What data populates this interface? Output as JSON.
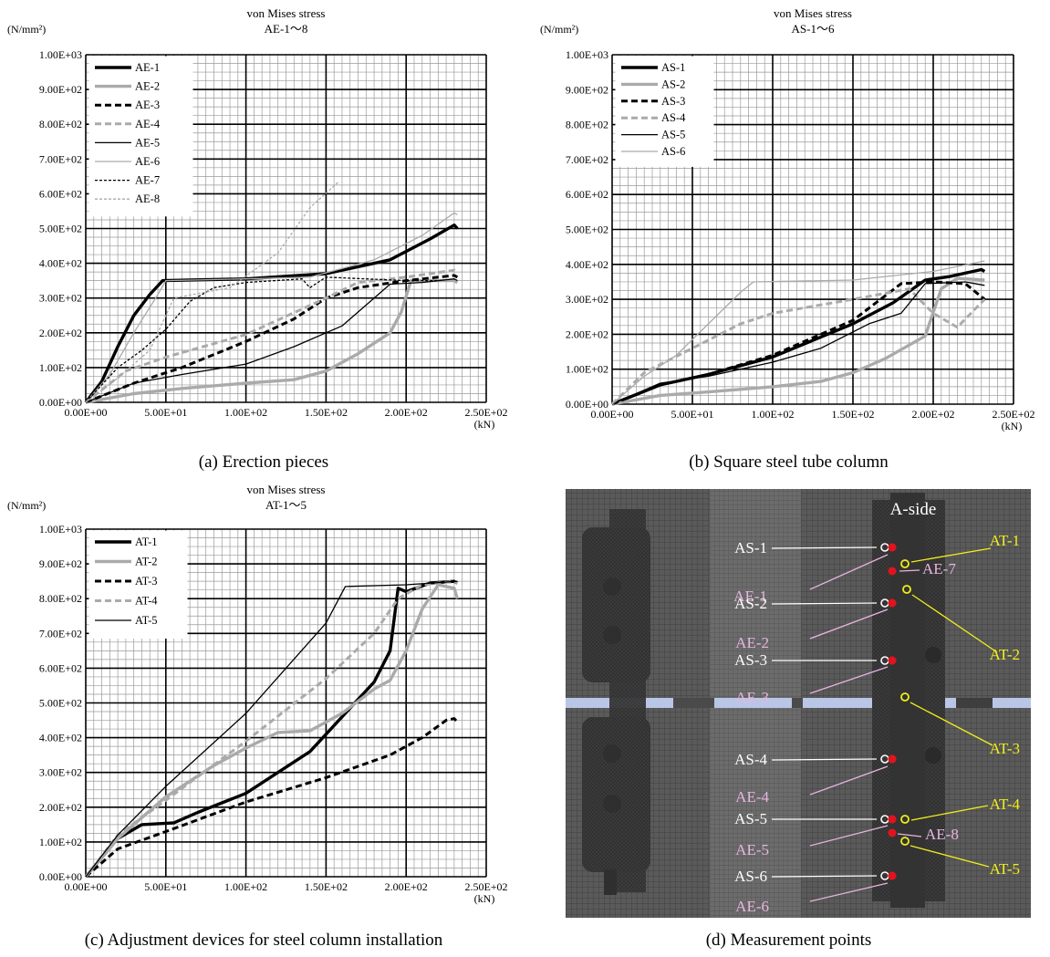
{
  "chart_data": [
    {
      "type": "line",
      "title": "von Mises stress",
      "subtitle": "AE-1～8",
      "ylabel_unit": "(N/mm²)",
      "xlabel_unit": "(kN)",
      "xlim": [
        0,
        250
      ],
      "ylim": [
        0,
        1000
      ],
      "x_ticks": [
        "0.00E+00",
        "5.00E+01",
        "1.00E+02",
        "1.50E+02",
        "2.00E+02",
        "2.50E+02"
      ],
      "y_ticks": [
        "0.00E+00",
        "1.00E+02",
        "2.00E+02",
        "3.00E+02",
        "4.00E+02",
        "5.00E+02",
        "6.00E+02",
        "7.00E+02",
        "8.00E+02",
        "9.00E+02",
        "1.00E+03"
      ],
      "legend_position": "top-left",
      "caption": "(a) Erection pieces",
      "series": [
        {
          "name": "AE-1",
          "style": "thick-black",
          "points": [
            [
              0,
              0
            ],
            [
              10,
              60
            ],
            [
              20,
              160
            ],
            [
              30,
              250
            ],
            [
              40,
              310
            ],
            [
              48,
              350
            ],
            [
              100,
              355
            ],
            [
              150,
              370
            ],
            [
              190,
              410
            ],
            [
              215,
              470
            ],
            [
              230,
              510
            ],
            [
              232,
              500
            ]
          ]
        },
        {
          "name": "AE-2",
          "style": "thick-gray",
          "points": [
            [
              0,
              0
            ],
            [
              30,
              25
            ],
            [
              60,
              40
            ],
            [
              100,
              55
            ],
            [
              130,
              65
            ],
            [
              150,
              90
            ],
            [
              170,
              140
            ],
            [
              190,
              200
            ],
            [
              197,
              260
            ],
            [
              203,
              350
            ],
            [
              230,
              350
            ],
            [
              232,
              345
            ]
          ]
        },
        {
          "name": "AE-3",
          "style": "thick-black-dash",
          "points": [
            [
              0,
              0
            ],
            [
              30,
              55
            ],
            [
              60,
              100
            ],
            [
              100,
              175
            ],
            [
              130,
              240
            ],
            [
              150,
              300
            ],
            [
              170,
              330
            ],
            [
              200,
              350
            ],
            [
              230,
              365
            ],
            [
              232,
              360
            ]
          ]
        },
        {
          "name": "AE-4",
          "style": "thick-gray-dash",
          "points": [
            [
              0,
              0
            ],
            [
              25,
              90
            ],
            [
              50,
              130
            ],
            [
              100,
              195
            ],
            [
              150,
              300
            ],
            [
              170,
              345
            ],
            [
              200,
              360
            ],
            [
              230,
              380
            ],
            [
              232,
              375
            ]
          ]
        },
        {
          "name": "AE-5",
          "style": "thin-black",
          "points": [
            [
              0,
              0
            ],
            [
              30,
              55
            ],
            [
              60,
              80
            ],
            [
              100,
              110
            ],
            [
              130,
              160
            ],
            [
              160,
              220
            ],
            [
              180,
              300
            ],
            [
              190,
              340
            ],
            [
              210,
              345
            ],
            [
              230,
              355
            ],
            [
              232,
              350
            ]
          ]
        },
        {
          "name": "AE-6",
          "style": "thin-gray",
          "points": [
            [
              0,
              0
            ],
            [
              15,
              80
            ],
            [
              30,
              200
            ],
            [
              45,
              310
            ],
            [
              50,
              350
            ],
            [
              100,
              355
            ],
            [
              140,
              360
            ],
            [
              180,
              410
            ],
            [
              210,
              480
            ],
            [
              230,
              545
            ],
            [
              232,
              540
            ]
          ]
        },
        {
          "name": "AE-7",
          "style": "thin-black-dash",
          "points": [
            [
              0,
              0
            ],
            [
              20,
              100
            ],
            [
              35,
              150
            ],
            [
              50,
              210
            ],
            [
              65,
              290
            ],
            [
              80,
              330
            ],
            [
              100,
              345
            ],
            [
              135,
              355
            ],
            [
              140,
              330
            ],
            [
              150,
              360
            ],
            [
              200,
              350
            ],
            [
              220,
              350
            ]
          ]
        },
        {
          "name": "AE-8",
          "style": "thin-gray-dash",
          "points": [
            [
              0,
              0
            ],
            [
              20,
              70
            ],
            [
              40,
              150
            ],
            [
              55,
              300
            ],
            [
              90,
              330
            ],
            [
              120,
              430
            ],
            [
              140,
              560
            ],
            [
              158,
              635
            ]
          ]
        }
      ]
    },
    {
      "type": "line",
      "title": "von Mises stress",
      "subtitle": "AS-1～6",
      "ylabel_unit": "(N/mm²)",
      "xlabel_unit": "(kN)",
      "xlim": [
        0,
        250
      ],
      "ylim": [
        0,
        1000
      ],
      "x_ticks": [
        "0.00E+00",
        "5.00E+01",
        "1.00E+02",
        "1.50E+02",
        "2.00E+02",
        "2.50E+02"
      ],
      "y_ticks": [
        "0.00E+00",
        "1.00E+02",
        "2.00E+02",
        "3.00E+02",
        "4.00E+02",
        "5.00E+02",
        "6.00E+02",
        "7.00E+02",
        "8.00E+02",
        "9.00E+02",
        "1.00E+03"
      ],
      "legend_position": "top-left",
      "caption": "(b) Square steel tube column",
      "series": [
        {
          "name": "AS-1",
          "style": "thick-black",
          "points": [
            [
              0,
              0
            ],
            [
              30,
              55
            ],
            [
              60,
              85
            ],
            [
              100,
              135
            ],
            [
              150,
              230
            ],
            [
              175,
              290
            ],
            [
              195,
              355
            ],
            [
              210,
              365
            ],
            [
              230,
              385
            ],
            [
              232,
              380
            ]
          ]
        },
        {
          "name": "AS-2",
          "style": "thick-gray",
          "points": [
            [
              0,
              0
            ],
            [
              30,
              25
            ],
            [
              60,
              35
            ],
            [
              100,
              50
            ],
            [
              130,
              65
            ],
            [
              150,
              90
            ],
            [
              170,
              130
            ],
            [
              195,
              195
            ],
            [
              205,
              330
            ],
            [
              215,
              360
            ],
            [
              232,
              355
            ]
          ]
        },
        {
          "name": "AS-3",
          "style": "thick-black-dash",
          "points": [
            [
              0,
              0
            ],
            [
              30,
              55
            ],
            [
              60,
              85
            ],
            [
              100,
              140
            ],
            [
              150,
              240
            ],
            [
              180,
              345
            ],
            [
              200,
              350
            ],
            [
              220,
              345
            ],
            [
              232,
              300
            ]
          ]
        },
        {
          "name": "AS-4",
          "style": "thick-gray-dash",
          "points": [
            [
              0,
              0
            ],
            [
              20,
              90
            ],
            [
              50,
              160
            ],
            [
              80,
              230
            ],
            [
              100,
              260
            ],
            [
              150,
              300
            ],
            [
              185,
              330
            ],
            [
              200,
              260
            ],
            [
              215,
              220
            ],
            [
              232,
              300
            ]
          ]
        },
        {
          "name": "AS-5",
          "style": "thin-black",
          "points": [
            [
              0,
              0
            ],
            [
              30,
              60
            ],
            [
              60,
              80
            ],
            [
              100,
              120
            ],
            [
              130,
              160
            ],
            [
              160,
              230
            ],
            [
              180,
              260
            ],
            [
              195,
              345
            ],
            [
              220,
              350
            ],
            [
              232,
              340
            ]
          ]
        },
        {
          "name": "AS-6",
          "style": "thin-gray",
          "points": [
            [
              0,
              0
            ],
            [
              20,
              80
            ],
            [
              40,
              140
            ],
            [
              60,
              230
            ],
            [
              80,
              320
            ],
            [
              88,
              350
            ],
            [
              150,
              355
            ],
            [
              200,
              380
            ],
            [
              232,
              410
            ]
          ]
        }
      ]
    },
    {
      "type": "line",
      "title": "von Mises stress",
      "subtitle": "AT-1～5",
      "ylabel_unit": "(N/mm²)",
      "xlabel_unit": "(kN)",
      "xlim": [
        0,
        250
      ],
      "ylim": [
        0,
        1000
      ],
      "x_ticks": [
        "0.00E+00",
        "5.00E+01",
        "1.00E+02",
        "1.50E+02",
        "2.00E+02",
        "2.50E+02"
      ],
      "y_ticks": [
        "0.00E+00",
        "1.00E+02",
        "2.00E+02",
        "3.00E+02",
        "4.00E+02",
        "5.00E+02",
        "6.00E+02",
        "7.00E+02",
        "8.00E+02",
        "9.00E+02",
        "1.00E+03"
      ],
      "legend_position": "top-left",
      "caption": "(c) Adjustment devices for steel column installation",
      "series": [
        {
          "name": "AT-1",
          "style": "thick-black",
          "points": [
            [
              0,
              0
            ],
            [
              20,
              110
            ],
            [
              35,
              150
            ],
            [
              55,
              155
            ],
            [
              70,
              185
            ],
            [
              100,
              240
            ],
            [
              120,
              300
            ],
            [
              140,
              360
            ],
            [
              150,
              410
            ],
            [
              170,
              510
            ],
            [
              180,
              560
            ],
            [
              190,
              650
            ],
            [
              195,
              830
            ],
            [
              200,
              820
            ],
            [
              215,
              845
            ],
            [
              230,
              850
            ],
            [
              232,
              845
            ]
          ]
        },
        {
          "name": "AT-2",
          "style": "thick-gray",
          "points": [
            [
              0,
              0
            ],
            [
              20,
              110
            ],
            [
              50,
              230
            ],
            [
              80,
              320
            ],
            [
              100,
              370
            ],
            [
              120,
              415
            ],
            [
              140,
              420
            ],
            [
              160,
              470
            ],
            [
              180,
              540
            ],
            [
              190,
              565
            ],
            [
              200,
              650
            ],
            [
              210,
              770
            ],
            [
              220,
              840
            ],
            [
              230,
              830
            ],
            [
              232,
              800
            ]
          ]
        },
        {
          "name": "AT-3",
          "style": "thick-black-dash",
          "points": [
            [
              0,
              0
            ],
            [
              20,
              80
            ],
            [
              50,
              130
            ],
            [
              100,
              215
            ],
            [
              150,
              285
            ],
            [
              190,
              350
            ],
            [
              210,
              400
            ],
            [
              225,
              450
            ],
            [
              230,
              455
            ],
            [
              232,
              445
            ]
          ]
        },
        {
          "name": "AT-4",
          "style": "thick-gray-dash",
          "points": [
            [
              0,
              0
            ],
            [
              20,
              120
            ],
            [
              50,
              220
            ],
            [
              100,
              390
            ],
            [
              150,
              570
            ],
            [
              180,
              700
            ],
            [
              195,
              800
            ],
            [
              210,
              840
            ],
            [
              230,
              850
            ],
            [
              232,
              845
            ]
          ]
        },
        {
          "name": "AT-5",
          "style": "thin-black",
          "points": [
            [
              0,
              0
            ],
            [
              20,
              120
            ],
            [
              50,
              260
            ],
            [
              100,
              470
            ],
            [
              150,
              730
            ],
            [
              162,
              835
            ],
            [
              200,
              840
            ],
            [
              232,
              850
            ]
          ]
        }
      ]
    }
  ],
  "panel_d": {
    "caption": "(d)  Measurement  points",
    "side_label": "A-side",
    "labels": [
      {
        "text": "AS-1",
        "kind": "AS"
      },
      {
        "text": "AE-1",
        "kind": "AE"
      },
      {
        "text": "AT-1",
        "kind": "AT"
      },
      {
        "text": "AE-7",
        "kind": "AE"
      },
      {
        "text": "AS-2",
        "kind": "AS"
      },
      {
        "text": "AT-2",
        "kind": "AT"
      },
      {
        "text": "AE-2",
        "kind": "AE"
      },
      {
        "text": "AS-3",
        "kind": "AS"
      },
      {
        "text": "AE-3",
        "kind": "AE"
      },
      {
        "text": "AT-3",
        "kind": "AT"
      },
      {
        "text": "AS-4",
        "kind": "AS"
      },
      {
        "text": "AE-4",
        "kind": "AE"
      },
      {
        "text": "AS-5",
        "kind": "AS"
      },
      {
        "text": "AT-4",
        "kind": "AT"
      },
      {
        "text": "AE-5",
        "kind": "AE"
      },
      {
        "text": "AE-8",
        "kind": "AE"
      },
      {
        "text": "AT-5",
        "kind": "AT"
      },
      {
        "text": "AS-6",
        "kind": "AS"
      },
      {
        "text": "AE-6",
        "kind": "AE"
      }
    ],
    "colors": {
      "AS": "#ffffff",
      "AE": "#e8b4e0",
      "AT": "#f2ee1a",
      "dot_red": "#e0141e",
      "dot_yellow": "#f2ee1a"
    }
  }
}
